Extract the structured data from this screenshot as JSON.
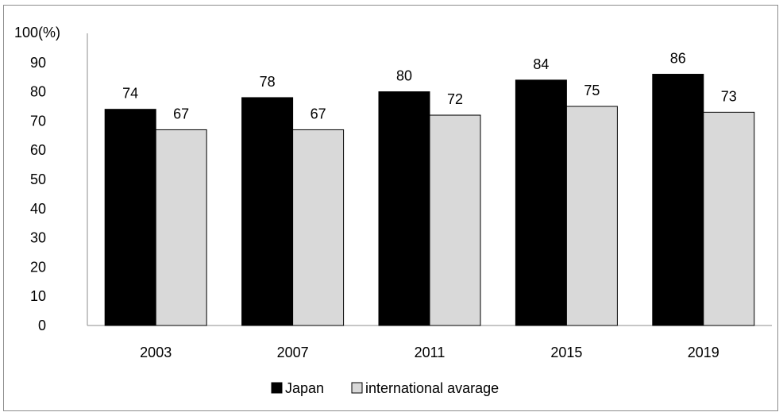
{
  "chart_data": {
    "type": "bar",
    "title": "",
    "xlabel": "",
    "ylabel": "",
    "y_unit_label": "100(%)",
    "categories": [
      "2003",
      "2007",
      "2011",
      "2015",
      "2019"
    ],
    "series": [
      {
        "name": "Japan",
        "values": [
          74,
          78,
          80,
          84,
          86
        ],
        "color": "#000000"
      },
      {
        "name": "international avarage",
        "values": [
          67,
          67,
          72,
          75,
          73
        ],
        "color": "#d9d9d9"
      }
    ],
    "ylim": [
      0,
      100
    ],
    "yticks": [
      0,
      10,
      20,
      30,
      40,
      50,
      60,
      70,
      80,
      90
    ],
    "grid": false,
    "legend_position": "bottom",
    "data_labels": true
  }
}
